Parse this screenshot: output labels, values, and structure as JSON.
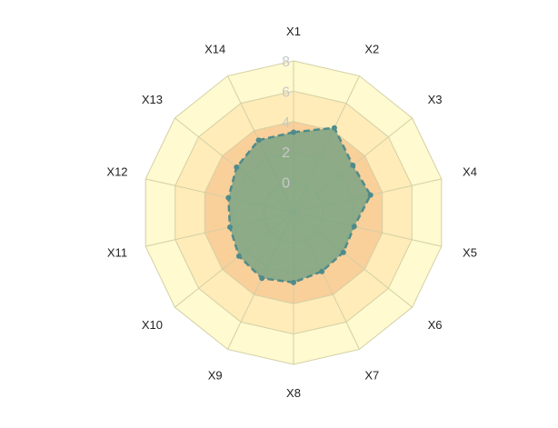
{
  "chart_data": {
    "type": "radar",
    "axes": [
      "X1",
      "X2",
      "X3",
      "X4",
      "X5",
      "X6",
      "X7",
      "X8",
      "X9",
      "X10",
      "X11",
      "X12",
      "X13",
      "X14"
    ],
    "rlim": [
      -2,
      8
    ],
    "ticks": [
      0,
      2,
      4,
      6,
      8
    ],
    "tick_labels": [
      "0",
      "2",
      "4",
      "6",
      "8"
    ],
    "bands": [
      {
        "from": -2,
        "to": 2,
        "color": "#f2d49a"
      },
      {
        "from": 2,
        "to": 4,
        "color": "#f9cf9a"
      },
      {
        "from": 4,
        "to": 6,
        "color": "#ffecb8"
      },
      {
        "from": 6,
        "to": 8,
        "color": "#fffad0"
      }
    ],
    "grid_color": "#d3d0a6",
    "series": [
      {
        "values": [
          3.3,
          4.2,
          3.0,
          3.2,
          2.1,
          2.2,
          2.3,
          2.6,
          2.8,
          2.6,
          2.3,
          2.4,
          2.8,
          3.3
        ],
        "fill": "#6b9e7f",
        "line": "#4f8b8b"
      }
    ]
  }
}
